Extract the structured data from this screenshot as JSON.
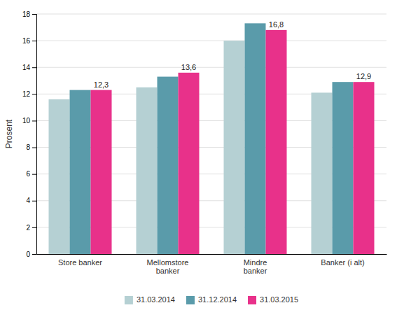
{
  "chart_data": {
    "type": "bar",
    "categories": [
      "Store banker",
      "Mellomstore\nbanker",
      "Mindre\nbanker",
      "Banker (i alt)"
    ],
    "series": [
      {
        "name": "31.03.2014",
        "color": "#b5d0d3",
        "values": [
          11.6,
          12.5,
          16.0,
          12.1
        ]
      },
      {
        "name": "31.12.2014",
        "color": "#5a9baa",
        "values": [
          12.3,
          13.3,
          17.3,
          12.9
        ]
      },
      {
        "name": "31.03.2015",
        "color": "#e8318a",
        "values": [
          12.3,
          13.6,
          16.8,
          12.9
        ],
        "data_labels": true,
        "value_labels": [
          "12,3",
          "13,6",
          "16,8",
          "12,9"
        ]
      }
    ],
    "ylabel": "Prosent",
    "ylim": [
      0,
      18
    ],
    "yticks": [
      0,
      2,
      4,
      6,
      8,
      10,
      12,
      14,
      16,
      18
    ],
    "grid": true,
    "legend": "bottom"
  }
}
